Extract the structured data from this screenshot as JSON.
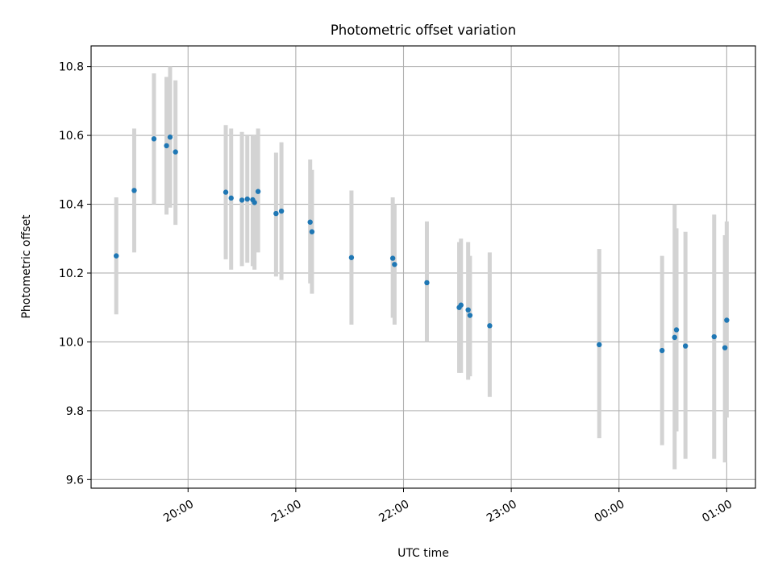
{
  "chart_data": {
    "type": "scatter",
    "title": "Photometric offset variation",
    "xlabel": "UTC time",
    "ylabel": "Photometric offset",
    "grid": true,
    "legend": "none",
    "x_axis_type": "time",
    "xlim": [
      "19:06",
      "01:16"
    ],
    "ylim": [
      9.575,
      10.86
    ],
    "x_ticks": [
      {
        "time": "20:00",
        "label": "20:00"
      },
      {
        "time": "21:00",
        "label": "21:00"
      },
      {
        "time": "22:00",
        "label": "22:00"
      },
      {
        "time": "23:00",
        "label": "23:00"
      },
      {
        "time": "00:00",
        "label": "00:00"
      },
      {
        "time": "01:00",
        "label": "01:00"
      }
    ],
    "y_ticks": [
      {
        "value": 9.6,
        "label": "9.6"
      },
      {
        "value": 9.8,
        "label": "9.8"
      },
      {
        "value": 10.0,
        "label": "10.0"
      },
      {
        "value": 10.2,
        "label": "10.2"
      },
      {
        "value": 10.4,
        "label": "10.4"
      },
      {
        "value": 10.6,
        "label": "10.6"
      },
      {
        "value": 10.8,
        "label": "10.8"
      }
    ],
    "colors": {
      "points": "#1f77b4",
      "errorbars": "#d3d3d3"
    },
    "points": [
      {
        "time": "19:20",
        "y": 10.25,
        "low": 10.08,
        "high": 10.42
      },
      {
        "time": "19:30",
        "y": 10.44,
        "low": 10.26,
        "high": 10.62
      },
      {
        "time": "19:41",
        "y": 10.59,
        "low": 10.4,
        "high": 10.78
      },
      {
        "time": "19:48",
        "y": 10.57,
        "low": 10.37,
        "high": 10.77
      },
      {
        "time": "19:50",
        "y": 10.595,
        "low": 10.39,
        "high": 10.8
      },
      {
        "time": "19:53",
        "y": 10.552,
        "low": 10.34,
        "high": 10.76
      },
      {
        "time": "20:21",
        "y": 10.435,
        "low": 10.24,
        "high": 10.63
      },
      {
        "time": "20:24",
        "y": 10.418,
        "low": 10.21,
        "high": 10.62
      },
      {
        "time": "20:30",
        "y": 10.412,
        "low": 10.22,
        "high": 10.61
      },
      {
        "time": "20:33",
        "y": 10.415,
        "low": 10.23,
        "high": 10.6
      },
      {
        "time": "20:36",
        "y": 10.413,
        "low": 10.22,
        "high": 10.6
      },
      {
        "time": "20:37",
        "y": 10.405,
        "low": 10.21,
        "high": 10.6
      },
      {
        "time": "20:39",
        "y": 10.437,
        "low": 10.26,
        "high": 10.62
      },
      {
        "time": "20:49",
        "y": 10.373,
        "low": 10.19,
        "high": 10.55
      },
      {
        "time": "20:52",
        "y": 10.38,
        "low": 10.18,
        "high": 10.58
      },
      {
        "time": "21:08",
        "y": 10.348,
        "low": 10.17,
        "high": 10.53
      },
      {
        "time": "21:09",
        "y": 10.32,
        "low": 10.14,
        "high": 10.5
      },
      {
        "time": "21:31",
        "y": 10.245,
        "low": 10.05,
        "high": 10.44
      },
      {
        "time": "21:54",
        "y": 10.243,
        "low": 10.07,
        "high": 10.42
      },
      {
        "time": "21:55",
        "y": 10.225,
        "low": 10.05,
        "high": 10.4
      },
      {
        "time": "22:13",
        "y": 10.172,
        "low": 10.0,
        "high": 10.35
      },
      {
        "time": "22:31",
        "y": 10.1,
        "low": 9.91,
        "high": 10.29
      },
      {
        "time": "22:32",
        "y": 10.107,
        "low": 9.91,
        "high": 10.3
      },
      {
        "time": "22:36",
        "y": 10.093,
        "low": 9.89,
        "high": 10.29
      },
      {
        "time": "22:37",
        "y": 10.077,
        "low": 9.9,
        "high": 10.25
      },
      {
        "time": "22:48",
        "y": 10.047,
        "low": 9.84,
        "high": 10.26
      },
      {
        "time": "23:49",
        "y": 9.992,
        "low": 9.72,
        "high": 10.27
      },
      {
        "time": "00:24",
        "y": 9.975,
        "low": 9.7,
        "high": 10.25
      },
      {
        "time": "00:31",
        "y": 10.013,
        "low": 9.63,
        "high": 10.4
      },
      {
        "time": "00:32",
        "y": 10.035,
        "low": 9.74,
        "high": 10.33
      },
      {
        "time": "00:37",
        "y": 9.988,
        "low": 9.66,
        "high": 10.32
      },
      {
        "time": "00:53",
        "y": 10.015,
        "low": 9.66,
        "high": 10.37
      },
      {
        "time": "00:59",
        "y": 9.983,
        "low": 9.65,
        "high": 10.31
      },
      {
        "time": "01:00",
        "y": 10.063,
        "low": 9.78,
        "high": 10.35
      }
    ]
  }
}
